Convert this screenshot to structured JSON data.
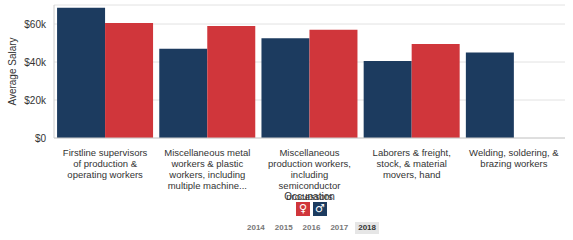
{
  "chart_data": {
    "type": "bar",
    "x_label": "Occupation",
    "y_label": "Average Salary",
    "categories": [
      "Firstline supervisors of production & operating workers",
      "Miscellaneous metal workers & plastic workers, including multiple machine...",
      "Miscellaneous production workers, including semiconductor processors",
      "Laborers & freight, stock, & material movers, hand",
      "Welding, soldering, & brazing workers"
    ],
    "series": [
      {
        "name": "♂",
        "color": "#1c3b5f",
        "values": [
          68500,
          47000,
          52500,
          40500,
          45000
        ]
      },
      {
        "name": "♀",
        "color": "#d0363b",
        "values": [
          60500,
          59000,
          57000,
          49500,
          null
        ]
      }
    ],
    "ylim": [
      0,
      70000
    ],
    "yticks": [
      {
        "value": 0,
        "label": "$0"
      },
      {
        "value": 20000,
        "label": "$20k"
      },
      {
        "value": 40000,
        "label": "$40k"
      },
      {
        "value": 60000,
        "label": "$60k"
      }
    ],
    "grid": true,
    "legend": "bottom"
  },
  "year_selector": {
    "years": [
      "2014",
      "2015",
      "2016",
      "2017",
      "2018"
    ],
    "selected": "2018"
  }
}
